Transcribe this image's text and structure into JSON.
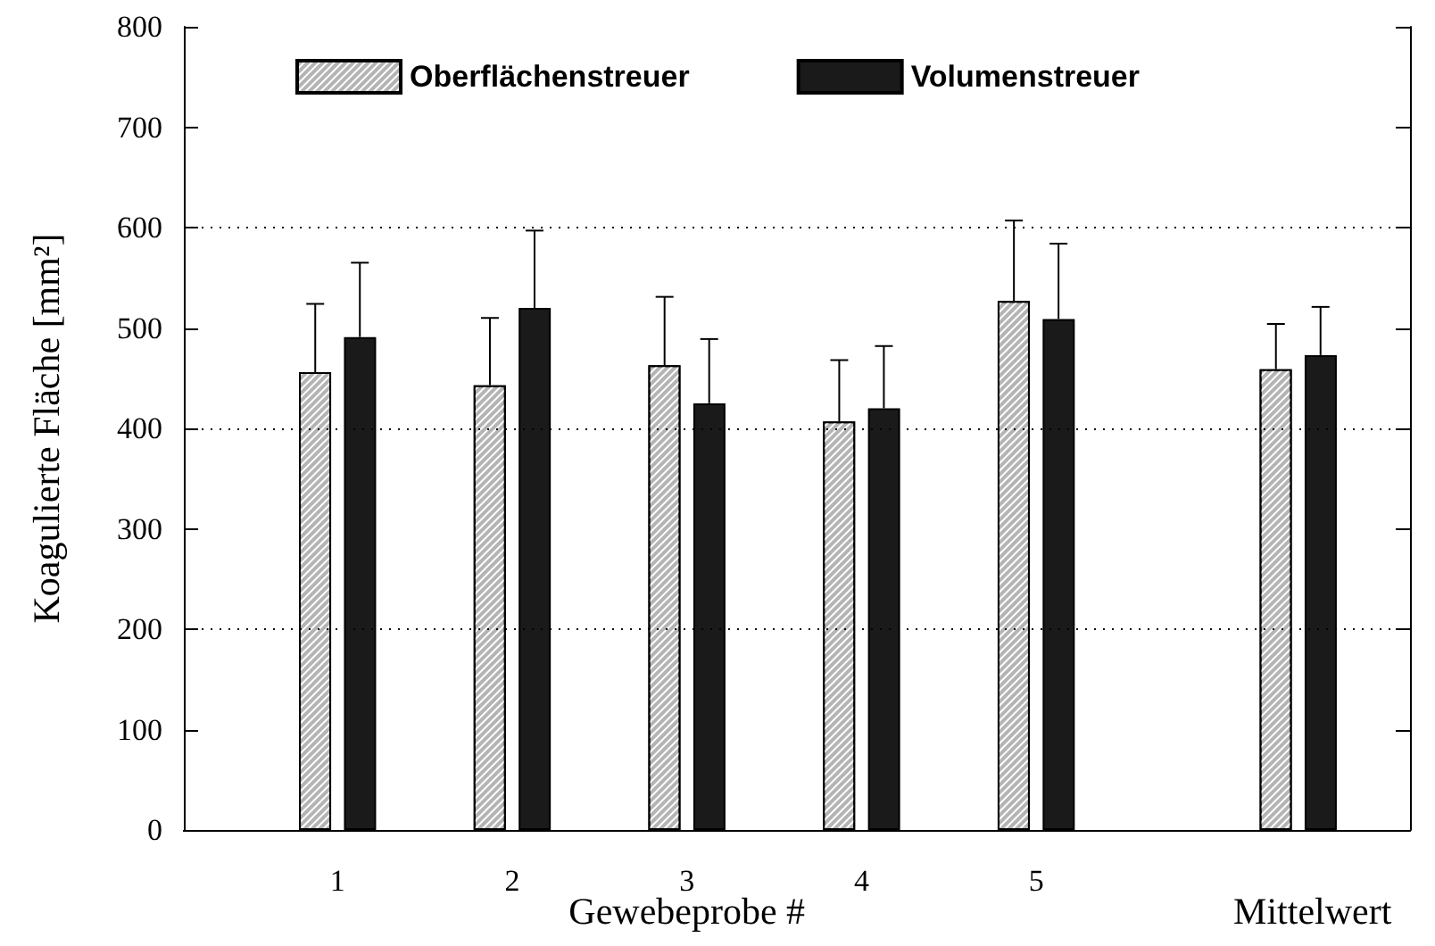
{
  "chart_data": {
    "type": "bar",
    "xlabel": "Gewebeprobe #",
    "ylabel": "Koagulierte Fläche [mm²]",
    "x": [
      1,
      2,
      3,
      4,
      5,
      6.5
    ],
    "xlim": [
      0.12,
      7.14
    ],
    "xticks": [
      1,
      2,
      3,
      4,
      5
    ],
    "ylim": [
      0,
      800
    ],
    "yticks": [
      0,
      100,
      200,
      300,
      400,
      500,
      600,
      700,
      800
    ],
    "series": [
      {
        "name": "Oberflächenstreuer",
        "color": "#b4b4b4",
        "values": [
          456,
          443,
          463,
          407,
          527,
          459
        ],
        "errors": [
          [
            456,
            524
          ],
          [
            443,
            510
          ],
          [
            463,
            531
          ],
          [
            407,
            468
          ],
          [
            527,
            607
          ],
          [
            459,
            504
          ]
        ]
      },
      {
        "name": "Volumenstreuer",
        "color": "#1a1a1a",
        "values": [
          491,
          520,
          425,
          420,
          509,
          473
        ],
        "errors": [
          [
            491,
            565
          ],
          [
            520,
            597
          ],
          [
            425,
            489
          ],
          [
            420,
            482
          ],
          [
            509,
            584
          ],
          [
            473,
            521
          ]
        ]
      }
    ],
    "ref_lines": [
      {
        "axis": "y",
        "value": 200,
        "color": "#000000",
        "line_style": "dotted"
      },
      {
        "axis": "y",
        "value": 400,
        "color": "#000000",
        "line_style": "dotted"
      },
      {
        "axis": "y",
        "value": 600,
        "color": "#000000",
        "line_style": "dotted"
      }
    ],
    "annotations": [
      "Mittelwert"
    ],
    "legend": "top"
  }
}
